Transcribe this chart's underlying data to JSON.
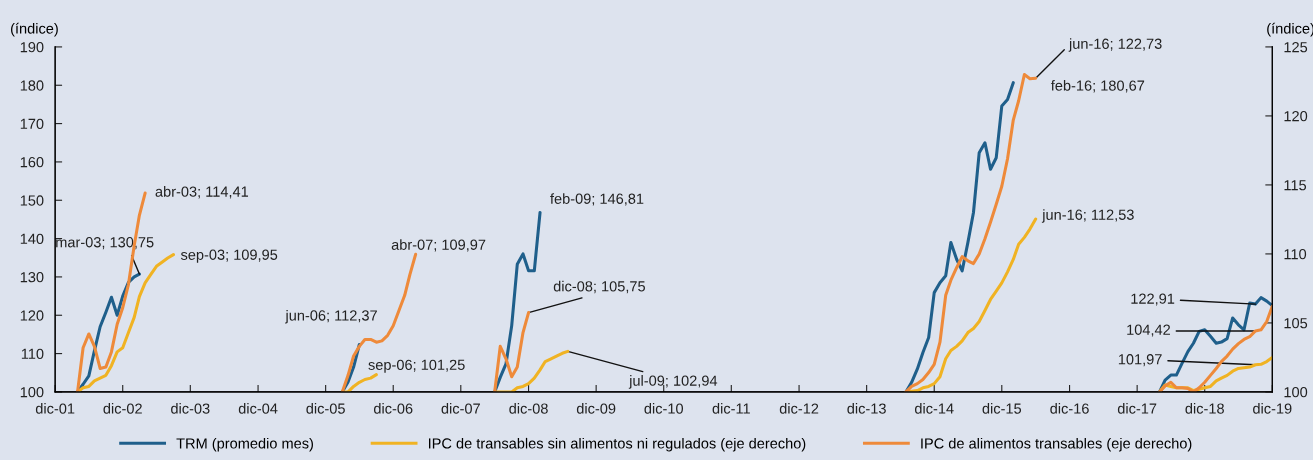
{
  "chart_data": {
    "type": "line",
    "ylabel": "(índice)",
    "y2label": "(índice)",
    "xlim": [
      "2001-12",
      "2019-12"
    ],
    "xticks": [
      {
        "value": "2001-12",
        "label": "dic-01"
      },
      {
        "value": "2002-12",
        "label": "dic-02"
      },
      {
        "value": "2003-12",
        "label": "dic-03"
      },
      {
        "value": "2004-12",
        "label": "dic-04"
      },
      {
        "value": "2005-12",
        "label": "dic-05"
      },
      {
        "value": "2006-12",
        "label": "dic-06"
      },
      {
        "value": "2007-12",
        "label": "dic-07"
      },
      {
        "value": "2008-12",
        "label": "dic-08"
      },
      {
        "value": "2009-12",
        "label": "dic-09"
      },
      {
        "value": "2010-12",
        "label": "dic-10"
      },
      {
        "value": "2011-12",
        "label": "dic-11"
      },
      {
        "value": "2012-12",
        "label": "dic-12"
      },
      {
        "value": "2013-12",
        "label": "dic-13"
      },
      {
        "value": "2014-12",
        "label": "dic-14"
      },
      {
        "value": "2015-12",
        "label": "dic-15"
      },
      {
        "value": "2016-12",
        "label": "dic-16"
      },
      {
        "value": "2017-12",
        "label": "dic-17"
      },
      {
        "value": "2018-12",
        "label": "dic-18"
      },
      {
        "value": "2019-12",
        "label": "dic-19"
      }
    ],
    "ylim": [
      100,
      190
    ],
    "yticks": [
      100,
      110,
      120,
      130,
      140,
      150,
      160,
      170,
      180,
      190
    ],
    "y2lim": [
      100,
      125
    ],
    "y2ticks": [
      100,
      105,
      110,
      115,
      120,
      125
    ],
    "grid": false,
    "legend": "bottom",
    "marker": "none",
    "line_style": "solid",
    "series": [
      {
        "name": "TRM (promedio mes)",
        "color": "#1f5f8b",
        "x": [
          "2002-04",
          "2002-05",
          "2002-06",
          "2002-07",
          "2002-08",
          "2002-09",
          "2002-10",
          "2002-11",
          "2002-12",
          "2003-01",
          "2003-02",
          "2003-03",
          "2003-04",
          "2006-03",
          "2006-04",
          "2006-05",
          "2006-06",
          "2006-07",
          "2008-06",
          "2008-07",
          "2008-08",
          "2008-09",
          "2008-10",
          "2008-11",
          "2008-12",
          "2009-01",
          "2009-02",
          "2009-03",
          "2014-07",
          "2014-08",
          "2014-09",
          "2014-10",
          "2014-11",
          "2014-12",
          "2015-01",
          "2015-02",
          "2015-03",
          "2015-04",
          "2015-05",
          "2015-06",
          "2015-07",
          "2015-08",
          "2015-09",
          "2015-10",
          "2015-11",
          "2015-12",
          "2016-01",
          "2016-02",
          "2016-03",
          "2018-04",
          "2018-05",
          "2018-06",
          "2018-07",
          "2018-08",
          "2018-09",
          "2018-10",
          "2018-11",
          "2018-12",
          "2019-01",
          "2019-02",
          "2019-03",
          "2019-04",
          "2019-05",
          "2019-06",
          "2019-07",
          "2019-08",
          "2019-09",
          "2019-10",
          "2019-11",
          "2019-12"
        ],
        "values": [
          100,
          102,
          104.2,
          110.7,
          117,
          120.8,
          124.7,
          120,
          125,
          128.6,
          130,
          130.75,
          null,
          100,
          102.6,
          106.5,
          112.37,
          null,
          100,
          103.8,
          107.3,
          117.3,
          133.3,
          136,
          131.6,
          131.6,
          146.81,
          null,
          100,
          102.5,
          106,
          110.3,
          114.2,
          125.9,
          128.5,
          130.3,
          139,
          134.6,
          131.6,
          139,
          146.8,
          162.4,
          165,
          158.1,
          161.1,
          174.6,
          176.3,
          180.67,
          null,
          100,
          103.1,
          104.4,
          104.4,
          107.5,
          110.5,
          112.7,
          115.8,
          116.2,
          114.5,
          112.7,
          113,
          113.9,
          119.3,
          117.5,
          116.2,
          123.2,
          122.91,
          124.6,
          123.7,
          122.5
        ]
      },
      {
        "name": "IPC de transables sin alimentos ni regulados (eje derecho)",
        "color": "#f0b323",
        "axis": "y2",
        "x": [
          "2002-04",
          "2002-05",
          "2002-06",
          "2002-07",
          "2002-08",
          "2002-09",
          "2002-10",
          "2002-11",
          "2002-12",
          "2003-01",
          "2003-02",
          "2003-03",
          "2003-04",
          "2003-05",
          "2003-06",
          "2003-07",
          "2003-08",
          "2003-09",
          "2003-10",
          "2006-03",
          "2006-04",
          "2006-05",
          "2006-06",
          "2006-07",
          "2006-08",
          "2006-09",
          "2006-10",
          "2008-06",
          "2008-07",
          "2008-08",
          "2008-09",
          "2008-10",
          "2008-11",
          "2008-12",
          "2009-01",
          "2009-02",
          "2009-03",
          "2009-04",
          "2009-05",
          "2009-06",
          "2009-07",
          "2009-08",
          "2014-07",
          "2014-08",
          "2014-09",
          "2014-10",
          "2014-11",
          "2014-12",
          "2015-01",
          "2015-02",
          "2015-03",
          "2015-04",
          "2015-05",
          "2015-06",
          "2015-07",
          "2015-08",
          "2015-09",
          "2015-10",
          "2015-11",
          "2015-12",
          "2016-01",
          "2016-02",
          "2016-03",
          "2016-04",
          "2016-05",
          "2016-06",
          "2016-07",
          "2018-04",
          "2018-05",
          "2018-06",
          "2018-07",
          "2018-08",
          "2018-09",
          "2018-10",
          "2018-11",
          "2018-12",
          "2019-01",
          "2019-02",
          "2019-03",
          "2019-04",
          "2019-05",
          "2019-06",
          "2019-07",
          "2019-08",
          "2019-09",
          "2019-10",
          "2019-11",
          "2019-12"
        ],
        "values": [
          100,
          100.3,
          100.4,
          100.8,
          101,
          101.2,
          101.9,
          102.9,
          103.2,
          104.3,
          105.4,
          106.9,
          107.9,
          108.5,
          109.1,
          109.4,
          109.7,
          109.95,
          null,
          100,
          100,
          100.4,
          100.7,
          100.9,
          101,
          101.25,
          null,
          100,
          100,
          100,
          100,
          100.3,
          100.4,
          100.6,
          101,
          101.6,
          102.2,
          102.4,
          102.6,
          102.8,
          102.94,
          null,
          100,
          100.05,
          100.1,
          100.3,
          100.4,
          100.6,
          101.1,
          102.4,
          103,
          103.3,
          103.7,
          104.3,
          104.6,
          105.1,
          105.9,
          106.7,
          107.3,
          107.9,
          108.7,
          109.6,
          110.7,
          111.2,
          111.8,
          112.53,
          null,
          100,
          100.5,
          100.4,
          100.3,
          100.3,
          100.3,
          100.1,
          100.2,
          100.3,
          100.4,
          100.8,
          101,
          101.2,
          101.5,
          101.7,
          101.75,
          101.8,
          101.97,
          102,
          102.2,
          102.5
        ]
      },
      {
        "name": "IPC de alimentos transables (eje derecho)",
        "color": "#ee8a3a",
        "axis": "y2",
        "x": [
          "2002-04",
          "2002-05",
          "2002-06",
          "2002-07",
          "2002-08",
          "2002-09",
          "2002-10",
          "2002-11",
          "2002-12",
          "2003-01",
          "2003-02",
          "2003-03",
          "2003-04",
          "2003-05",
          "2006-03",
          "2006-04",
          "2006-05",
          "2006-06",
          "2006-07",
          "2006-08",
          "2006-09",
          "2006-10",
          "2006-11",
          "2006-12",
          "2007-01",
          "2007-02",
          "2007-03",
          "2007-04",
          "2007-05",
          "2008-06",
          "2008-07",
          "2008-08",
          "2008-09",
          "2008-10",
          "2008-11",
          "2008-12",
          "2009-01",
          "2014-07",
          "2014-08",
          "2014-09",
          "2014-10",
          "2014-11",
          "2014-12",
          "2015-01",
          "2015-02",
          "2015-03",
          "2015-04",
          "2015-05",
          "2015-06",
          "2015-07",
          "2015-08",
          "2015-09",
          "2015-10",
          "2015-11",
          "2015-12",
          "2016-01",
          "2016-02",
          "2016-03",
          "2016-04",
          "2016-05",
          "2016-06",
          "2016-07",
          "2018-04",
          "2018-05",
          "2018-06",
          "2018-07",
          "2018-08",
          "2018-09",
          "2018-10",
          "2018-11",
          "2018-12",
          "2019-01",
          "2019-02",
          "2019-03",
          "2019-04",
          "2019-05",
          "2019-06",
          "2019-07",
          "2019-08",
          "2019-09",
          "2019-10",
          "2019-11",
          "2019-12"
        ],
        "values": [
          100,
          103.2,
          104.2,
          103.3,
          101.7,
          101.8,
          102.9,
          104.9,
          106.1,
          107.8,
          110.6,
          112.8,
          114.41,
          null,
          100,
          101.2,
          102.6,
          103.3,
          103.8,
          103.8,
          103.6,
          103.7,
          104.1,
          104.8,
          105.9,
          107,
          108.5,
          109.97,
          null,
          100,
          103.3,
          102.4,
          101.1,
          101.8,
          104.3,
          105.75,
          null,
          100,
          100.4,
          100.6,
          100.9,
          101.4,
          102,
          103.6,
          107,
          108.1,
          109,
          109.8,
          109.5,
          109.3,
          110,
          111.1,
          112.3,
          113.6,
          114.9,
          116.9,
          119.7,
          121.1,
          123,
          122.7,
          122.73,
          null,
          100,
          100.44,
          100.7,
          100.3,
          100.3,
          100.25,
          100,
          100.3,
          100.7,
          101.2,
          101.7,
          102.2,
          102.6,
          103.1,
          103.5,
          103.8,
          104,
          104.42,
          104.5,
          105.1,
          106.2
        ]
      }
    ],
    "annotations": [
      {
        "text": "mar-03; 130,75",
        "x": "2003-03",
        "y": 130.75
      },
      "abr-03; 114,41",
      "sep-03; 109,95",
      {
        "text": "jun-06; 112,37",
        "x": "2006-06",
        "y": 112.37
      },
      "sep-06; 101,25",
      "abr-07; 109,97",
      {
        "text": "feb-09; 146,81",
        "x": "2009-02",
        "y": 146.81
      },
      {
        "text": "dic-08; 105,75",
        "x": "2008-12",
        "y": 120.7
      },
      {
        "text": "jul-09; 102,94",
        "x": "2009-07",
        "y": 110.58
      },
      {
        "text": "jun-16; 122,73",
        "x": "2016-06",
        "y": 181.8
      },
      {
        "text": "feb-16; 180,67",
        "x": "2016-02",
        "y": 180.67
      },
      "jun-16; 112,53",
      {
        "text": "122,91",
        "x": "2019-09",
        "y": 122.91
      },
      {
        "text": "104,42",
        "x": "2019-09",
        "y": 115.9
      },
      {
        "text": "101,97",
        "x": "2019-09",
        "y": 107.1
      }
    ]
  }
}
